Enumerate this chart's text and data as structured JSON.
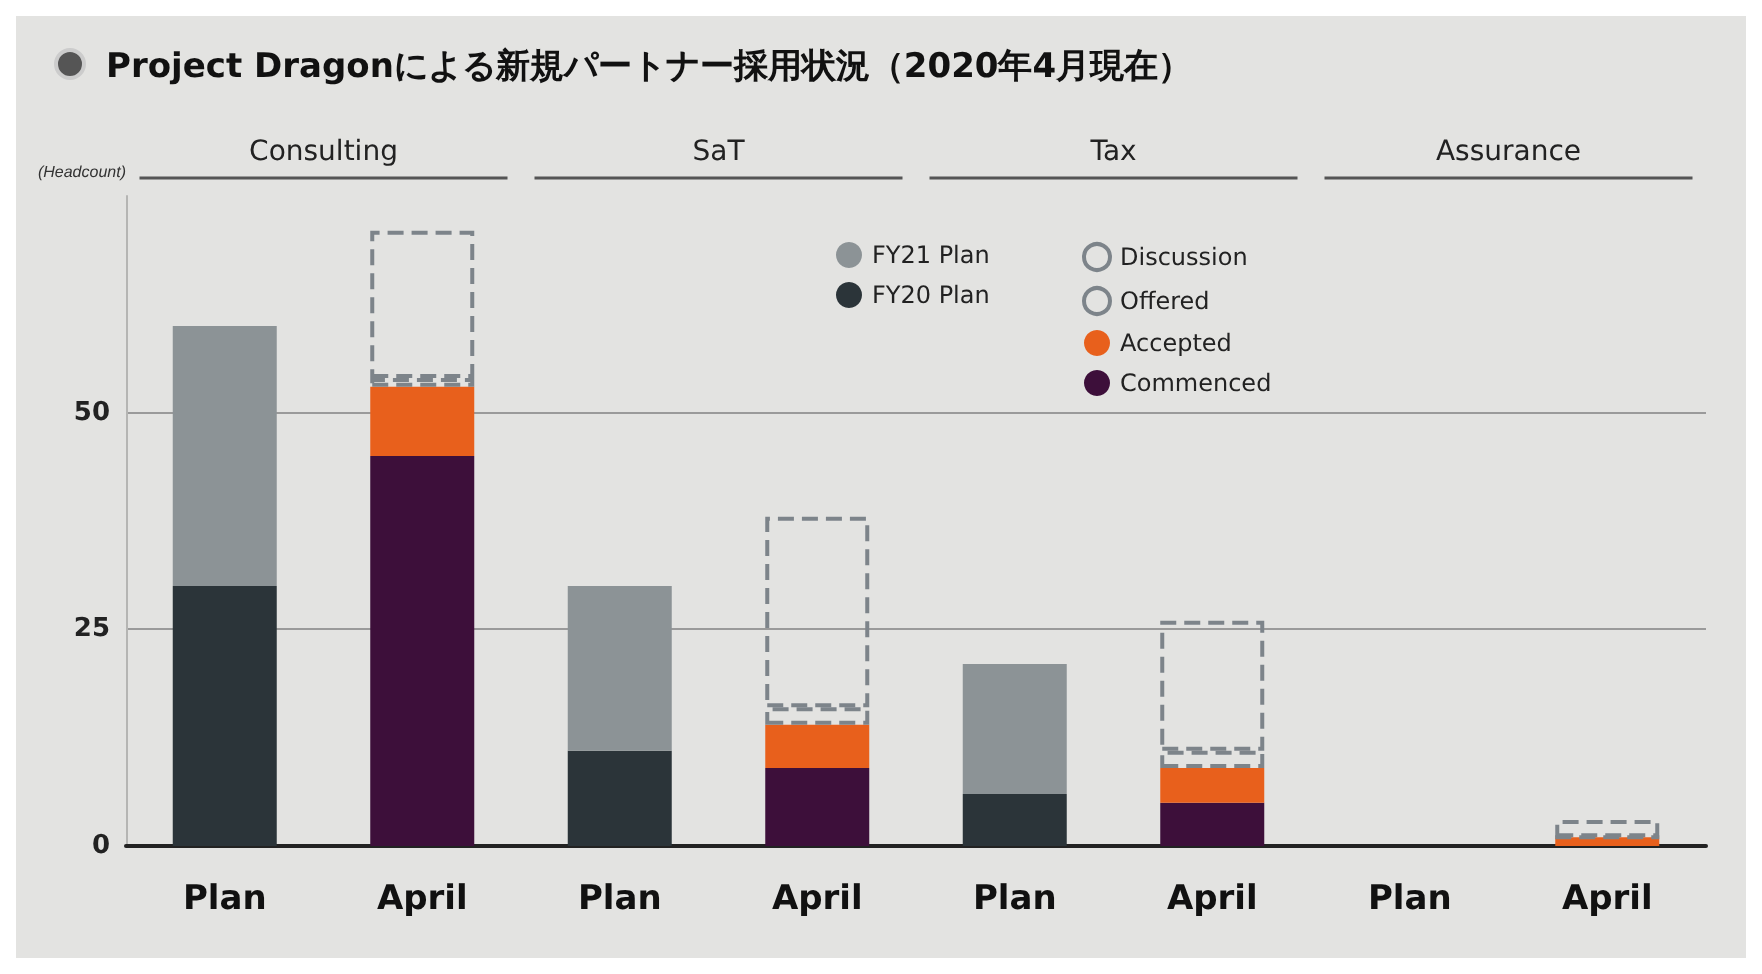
{
  "chart_data": {
    "type": "bar",
    "title": "Project Dragonによる新規パートナー採用状況（2020年4月現在）",
    "ylabel": "(Headcount)",
    "annotations": [
      "Consulting",
      "SaT",
      "Tax",
      "Assurance"
    ],
    "categories": [
      "Plan",
      "April",
      "Plan",
      "April",
      "Plan",
      "April",
      "Plan",
      "April"
    ],
    "stacked": true,
    "ylim": [
      0,
      75
    ],
    "yticks": [
      0,
      25,
      50
    ],
    "grid": "y",
    "legend": "top",
    "series": [
      {
        "name": "FY20 Plan",
        "color": "#2b3439",
        "values": [
          30,
          null,
          11,
          null,
          6,
          null,
          0,
          null
        ]
      },
      {
        "name": "FY21 Plan",
        "color": "#8c9396",
        "values": [
          30,
          null,
          19,
          null,
          15,
          null,
          0,
          null
        ]
      },
      {
        "name": "Commenced",
        "color": "#3d0f3a",
        "values": [
          null,
          45,
          null,
          9,
          null,
          5,
          null,
          0
        ]
      },
      {
        "name": "Accepted",
        "color": "#e8601c",
        "values": [
          null,
          8,
          null,
          5,
          null,
          4,
          null,
          1
        ]
      },
      {
        "name": "Offered",
        "color": "#7d848a",
        "line_style": "dashed",
        "values": [
          null,
          1,
          null,
          2,
          null,
          2,
          null,
          0
        ]
      },
      {
        "name": "Discussion",
        "color": "#7d848a",
        "line_style": "dashed",
        "values": [
          null,
          17,
          null,
          22,
          null,
          15,
          null,
          2
        ]
      }
    ]
  }
}
